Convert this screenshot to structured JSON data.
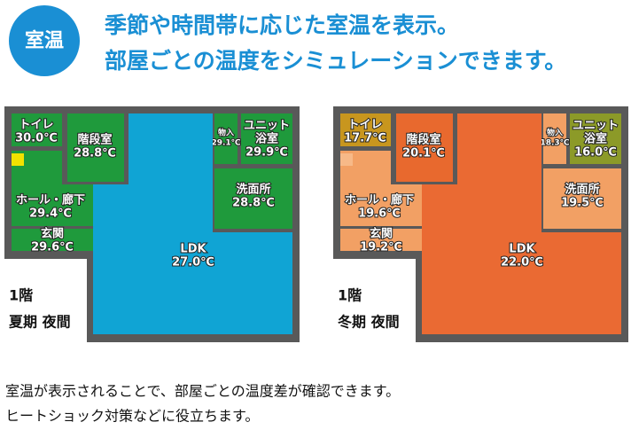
{
  "header": {
    "badge": "室温",
    "lines": [
      "季節や時間帯に応じた室温を表示。",
      "部屋ごとの温度をシミュレーションできます。"
    ]
  },
  "plans": [
    {
      "floor": "1階",
      "season": "夏期 夜間",
      "rooms": [
        {
          "name": "トイレ",
          "temp": "30.0℃",
          "color": "#1f9a3c"
        },
        {
          "name": "階段室",
          "temp": "28.8℃",
          "color": "#1f9a3c"
        },
        {
          "name": "物入",
          "temp": "29.1℃",
          "color": "#1f9a3c"
        },
        {
          "name": [
            "ユニット",
            "浴室"
          ],
          "temp": "29.9℃",
          "color": "#1f9a3c"
        },
        {
          "name": "洗面所",
          "temp": "28.8℃",
          "color": "#1f9a3c"
        },
        {
          "name": "ホール・廊下",
          "temp": "29.4℃",
          "color": "#1f9a3c"
        },
        {
          "name": "玄関",
          "temp": "29.6℃",
          "color": "#1f9a3c"
        },
        {
          "name": "LDK",
          "temp": "27.0℃",
          "color": "#10a4d4"
        }
      ]
    },
    {
      "floor": "1階",
      "season": "冬期 夜間",
      "rooms": [
        {
          "name": "トイレ",
          "temp": "17.7℃",
          "color": "#c8961e"
        },
        {
          "name": "階段室",
          "temp": "20.1℃",
          "color": "#e8692e"
        },
        {
          "name": "物入",
          "temp": "18.3℃",
          "color": "#f2a064"
        },
        {
          "name": [
            "ユニット",
            "浴室"
          ],
          "temp": "16.0℃",
          "color": "#8c9a28"
        },
        {
          "name": "洗面所",
          "temp": "19.5℃",
          "color": "#f2a064"
        },
        {
          "name": "ホール・廊下",
          "temp": "19.6℃",
          "color": "#f2a064"
        },
        {
          "name": "玄関",
          "temp": "19.2℃",
          "color": "#f2a064"
        },
        {
          "name": "LDK",
          "temp": "22.0℃",
          "color": "#ea6a33"
        }
      ]
    }
  ],
  "footer": {
    "lines": [
      "室温が表示されることで、部屋ごとの温度差が確認できます。",
      "ヒートショック対策などに役立ちます。"
    ]
  }
}
